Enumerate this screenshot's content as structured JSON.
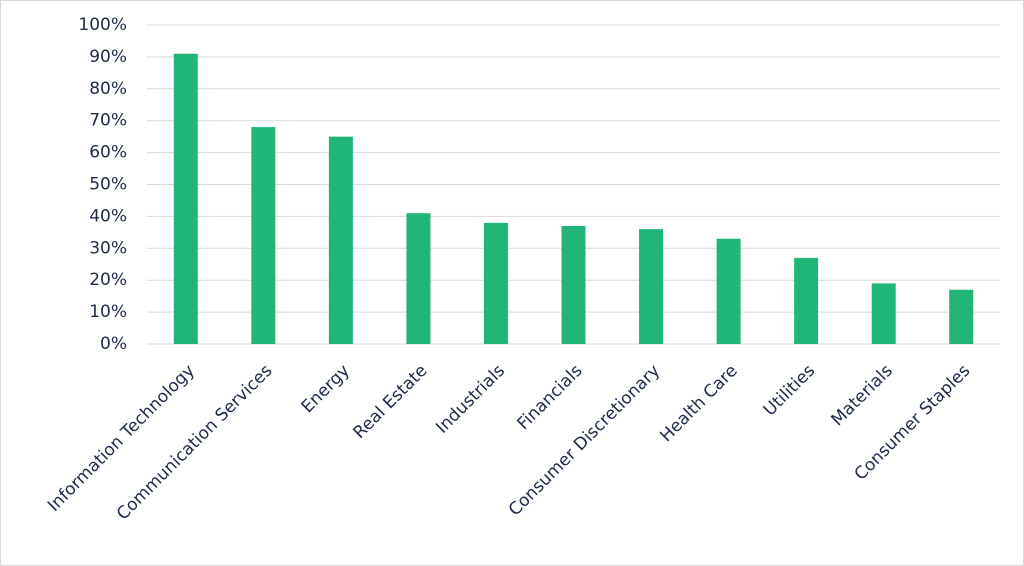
{
  "chart_data": {
    "type": "bar",
    "categories": [
      "Information Technology",
      "Communication Services",
      "Energy",
      "Real Estate",
      "Industrials",
      "Financials",
      "Consumer Discretionary",
      "Health Care",
      "Utilities",
      "Materials",
      "Consumer Staples"
    ],
    "values": [
      91,
      68,
      65,
      41,
      38,
      37,
      36,
      33,
      27,
      19,
      17
    ],
    "color": "#21b677",
    "ylim": [
      0,
      100
    ],
    "yticks": [
      {
        "value": 0,
        "label": "0%"
      },
      {
        "value": 10,
        "label": "10%"
      },
      {
        "value": 20,
        "label": "20%"
      },
      {
        "value": 30,
        "label": "30%"
      },
      {
        "value": 40,
        "label": "40%"
      },
      {
        "value": 50,
        "label": "50%"
      },
      {
        "value": 60,
        "label": "60%"
      },
      {
        "value": 70,
        "label": "70%"
      },
      {
        "value": 80,
        "label": "80%"
      },
      {
        "value": 90,
        "label": "90%"
      },
      {
        "value": 100,
        "label": "100%"
      }
    ],
    "grid": true
  }
}
